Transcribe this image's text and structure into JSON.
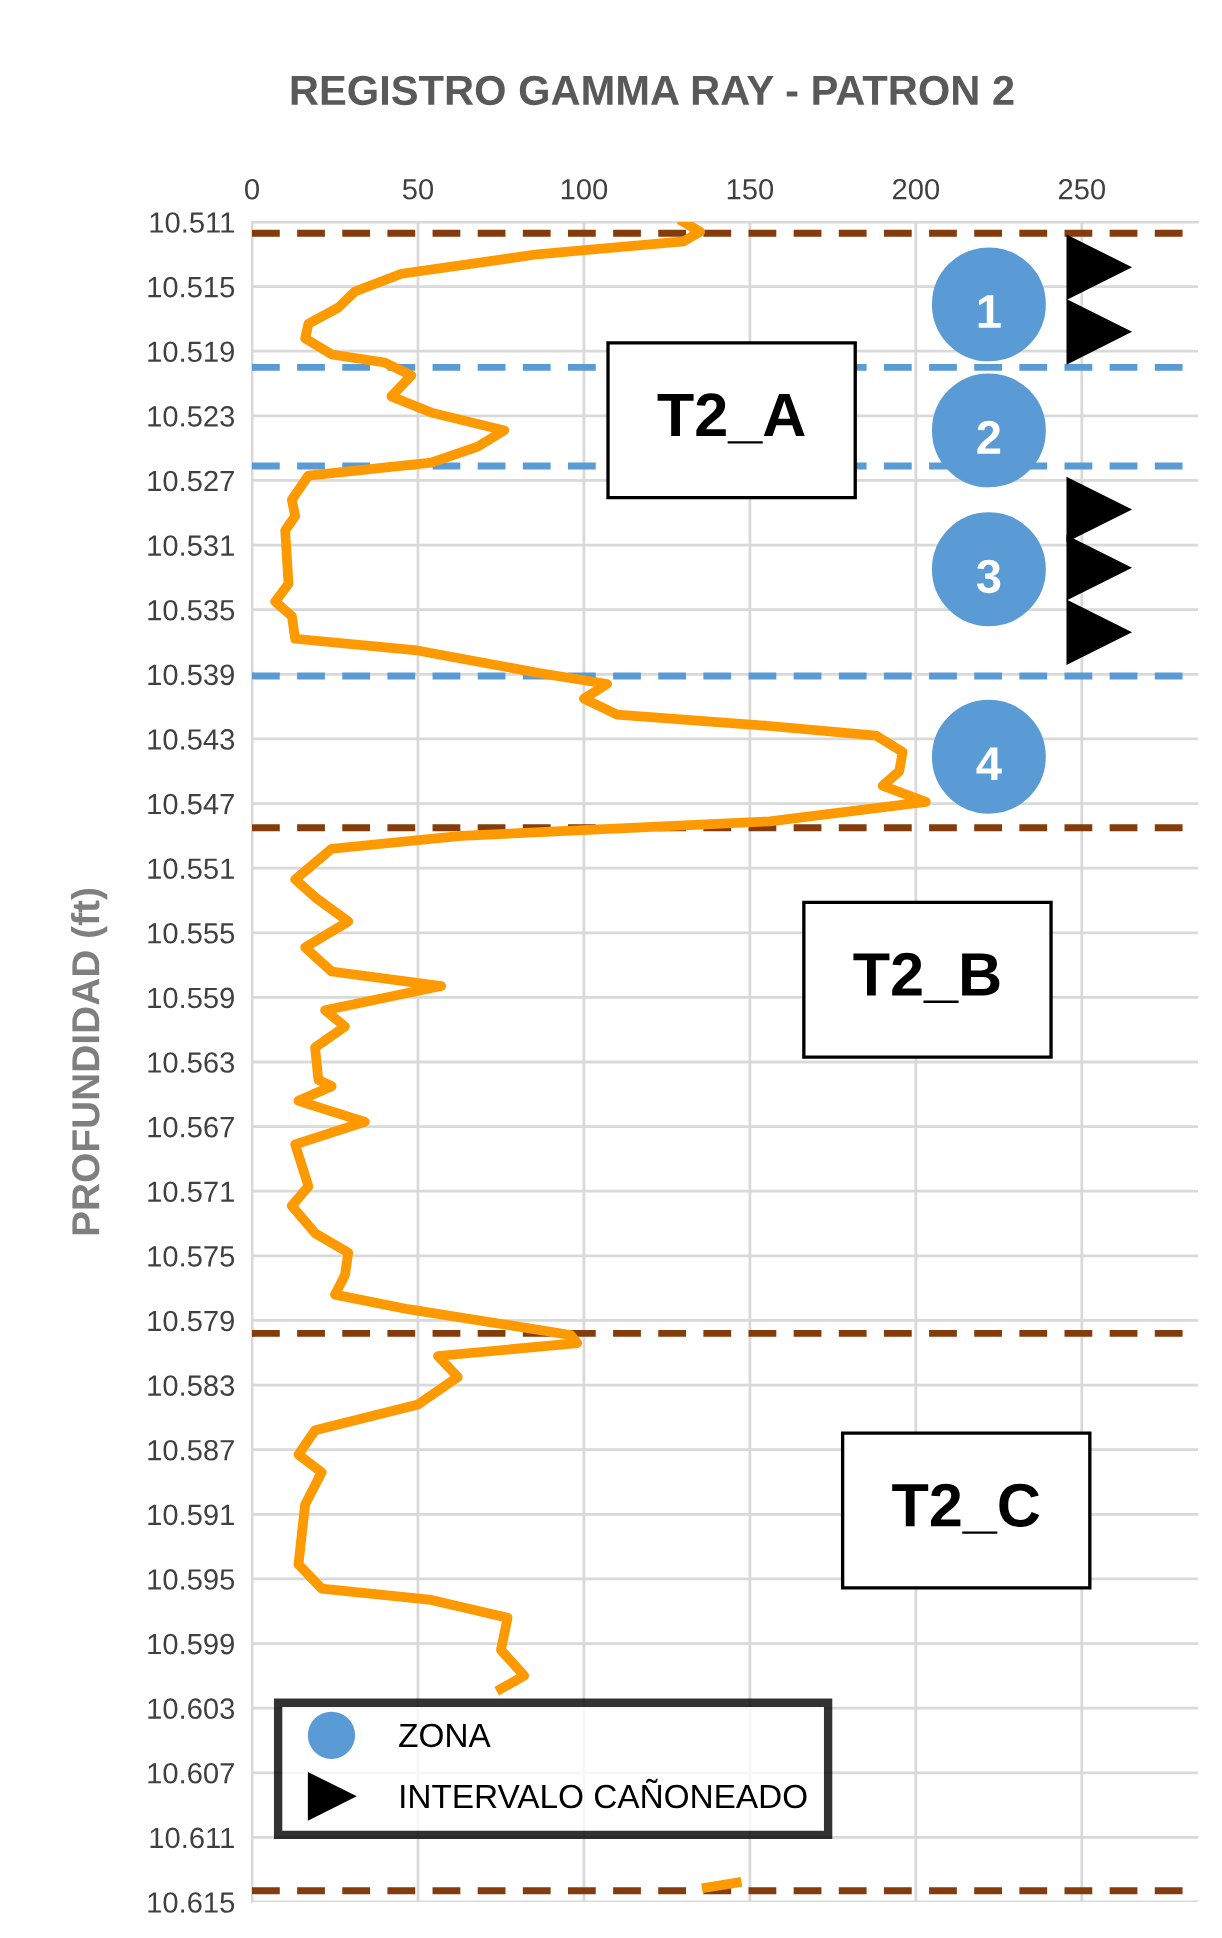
{
  "chart_data": {
    "type": "line",
    "title": "REGISTRO GAMMA RAY - PATRON 2",
    "ylabel": "PROFUNDIDAD (ft)",
    "xlim": [
      0,
      285
    ],
    "xticks": [
      0,
      50,
      100,
      150,
      200,
      250
    ],
    "ylim": [
      10.615,
      10.511
    ],
    "yticks": [
      10.511,
      10.515,
      10.519,
      10.523,
      10.527,
      10.531,
      10.535,
      10.539,
      10.543,
      10.547,
      10.551,
      10.555,
      10.559,
      10.563,
      10.567,
      10.571,
      10.575,
      10.579,
      10.583,
      10.587,
      10.591,
      10.595,
      10.599,
      10.603,
      10.607,
      10.611,
      10.615
    ],
    "grid": true,
    "legend": "bottom left",
    "series": [
      {
        "color": "#ff9900",
        "line_style": "solid",
        "marker": "none",
        "x": [
          130,
          135,
          130,
          86,
          45,
          31,
          26,
          17,
          16,
          24,
          40,
          48,
          42,
          54,
          76,
          68,
          54,
          17,
          12,
          13,
          10,
          11,
          7,
          12,
          13,
          49,
          86,
          107,
          100,
          110,
          156,
          188,
          196,
          195,
          190,
          203,
          156,
          63,
          24,
          13,
          19,
          29,
          16,
          24,
          57,
          22,
          28,
          19,
          20,
          24,
          14,
          34,
          13,
          17,
          12,
          19,
          29,
          28,
          25,
          47,
          96,
          98,
          56,
          62,
          50,
          19,
          14,
          21,
          16,
          14,
          21,
          54,
          77,
          75,
          82,
          75,
          null,
          137,
          146
        ],
        "values": [
          10.511,
          10.5116,
          10.5122,
          10.513,
          10.5142,
          10.5153,
          10.5163,
          10.5173,
          10.5182,
          10.5192,
          10.5197,
          10.5205,
          10.5218,
          10.5228,
          10.5239,
          10.5249,
          10.5259,
          10.5267,
          10.5282,
          10.5292,
          10.5301,
          10.5334,
          10.5345,
          10.5354,
          10.5368,
          10.5375,
          10.5389,
          10.5396,
          10.5405,
          10.5415,
          10.5422,
          10.5428,
          10.5438,
          10.545,
          10.5459,
          10.5469,
          10.5481,
          10.549,
          10.5498,
          10.5517,
          10.5528,
          10.5543,
          10.5559,
          10.5574,
          10.5583,
          10.5598,
          10.5608,
          10.5621,
          10.5641,
          10.5645,
          10.5654,
          10.5667,
          10.5681,
          10.5707,
          10.5719,
          10.5736,
          10.5748,
          10.5762,
          10.5774,
          10.5783,
          10.5799,
          10.5804,
          10.5812,
          10.5825,
          10.5842,
          10.5858,
          10.5873,
          10.5884,
          10.5904,
          10.5941,
          10.5956,
          10.5963,
          10.5974,
          10.5994,
          10.601,
          10.6018,
          null,
          10.6141,
          10.6138
        ]
      },
      {
        "type": "scatter",
        "name": "ZONA",
        "color": "#5b9bd5",
        "marker": "circle",
        "x": [
          222,
          222,
          222,
          222
        ],
        "values": [
          10.5161,
          10.5239,
          10.5325,
          10.5441
        ]
      },
      {
        "type": "scatter",
        "name": "INTERVALO CAÑONEADO",
        "color": "#000000",
        "marker": "triangle",
        "x": [
          255,
          255,
          255,
          255,
          255
        ],
        "values": [
          10.5138,
          10.5178,
          10.5288,
          10.5324,
          10.5364
        ]
      }
    ],
    "ref_lines": [
      {
        "axis": "y",
        "value": 10.5117,
        "color": "#843c0c",
        "line_style": "dashed"
      },
      {
        "axis": "y",
        "value": 10.5485,
        "color": "#843c0c",
        "line_style": "dashed"
      },
      {
        "axis": "y",
        "value": 10.5798,
        "color": "#843c0c",
        "line_style": "dashed"
      },
      {
        "axis": "y",
        "value": 10.6143,
        "color": "#843c0c",
        "line_style": "dashed"
      },
      {
        "axis": "y",
        "value": 10.52,
        "color": "#5b9bd5",
        "line_style": "dashed"
      },
      {
        "axis": "y",
        "value": 10.5261,
        "color": "#5b9bd5",
        "line_style": "dashed"
      },
      {
        "axis": "y",
        "value": 10.5391,
        "color": "#5b9bd5",
        "line_style": "dashed"
      }
    ],
    "annotations": [
      "1",
      "2",
      "3",
      "4",
      "T2_A",
      "T2_B",
      "T2_C"
    ]
  }
}
